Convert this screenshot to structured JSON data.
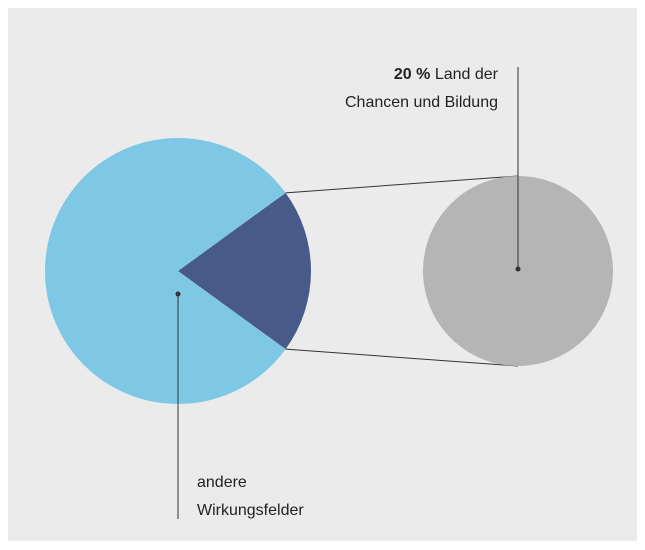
{
  "chart_data": {
    "type": "pie",
    "categories": [
      "Land der Chancen und Bildung",
      "andere Wirkungsfelder"
    ],
    "values": [
      20,
      80
    ],
    "value_labels": [
      "20 %",
      null
    ],
    "colors": [
      "#485a8a",
      "#7ec8e6"
    ],
    "detail_color": "#b4b5b4"
  }
}
